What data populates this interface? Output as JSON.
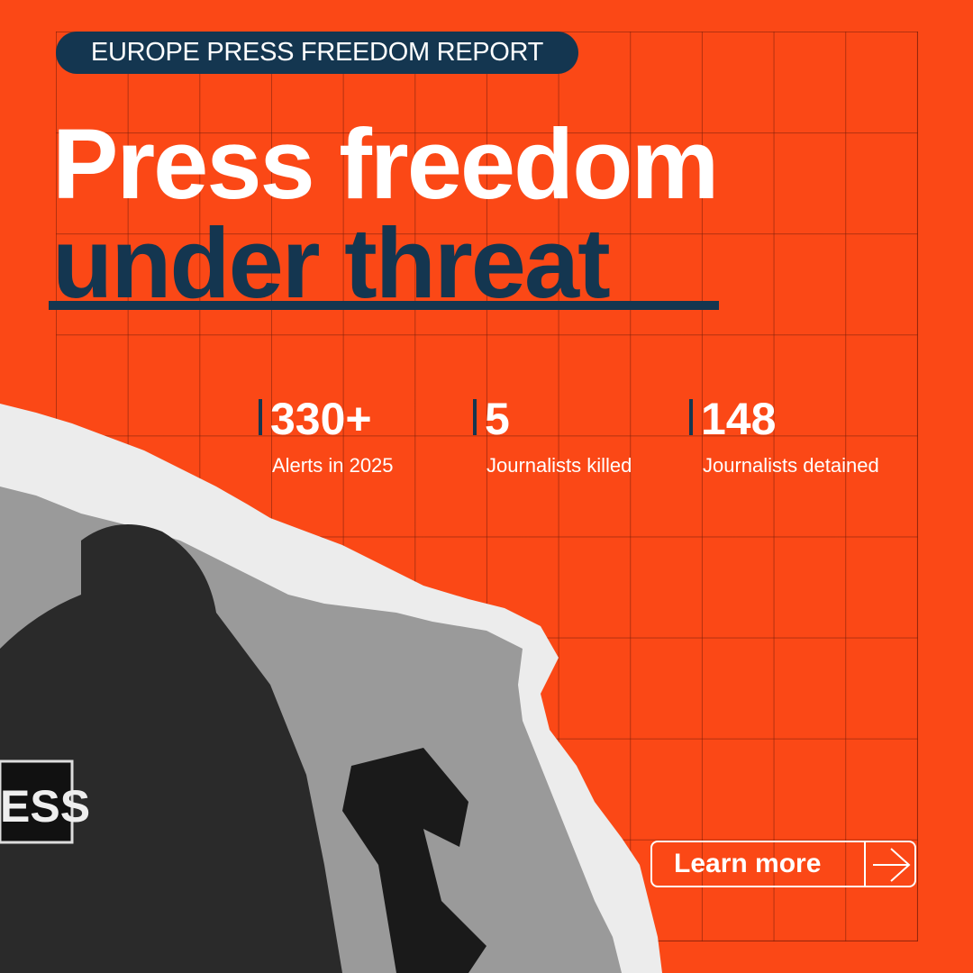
{
  "header": {
    "badge": "EUROPE PRESS FREEDOM REPORT"
  },
  "headline": {
    "line1": "Press freedom",
    "line2": "under threat"
  },
  "stats": [
    {
      "value": "330+",
      "label": "Alerts in 2025"
    },
    {
      "value": "5",
      "label": "Journalists killed"
    },
    {
      "value": "148",
      "label": "Journalists detained"
    }
  ],
  "photo": {
    "patch_text": "ESS"
  },
  "cta": {
    "label": "Learn more",
    "icon": "arrow-right-icon"
  },
  "colors": {
    "background": "#fb4816",
    "navy": "#143650",
    "white": "#ffffff"
  }
}
